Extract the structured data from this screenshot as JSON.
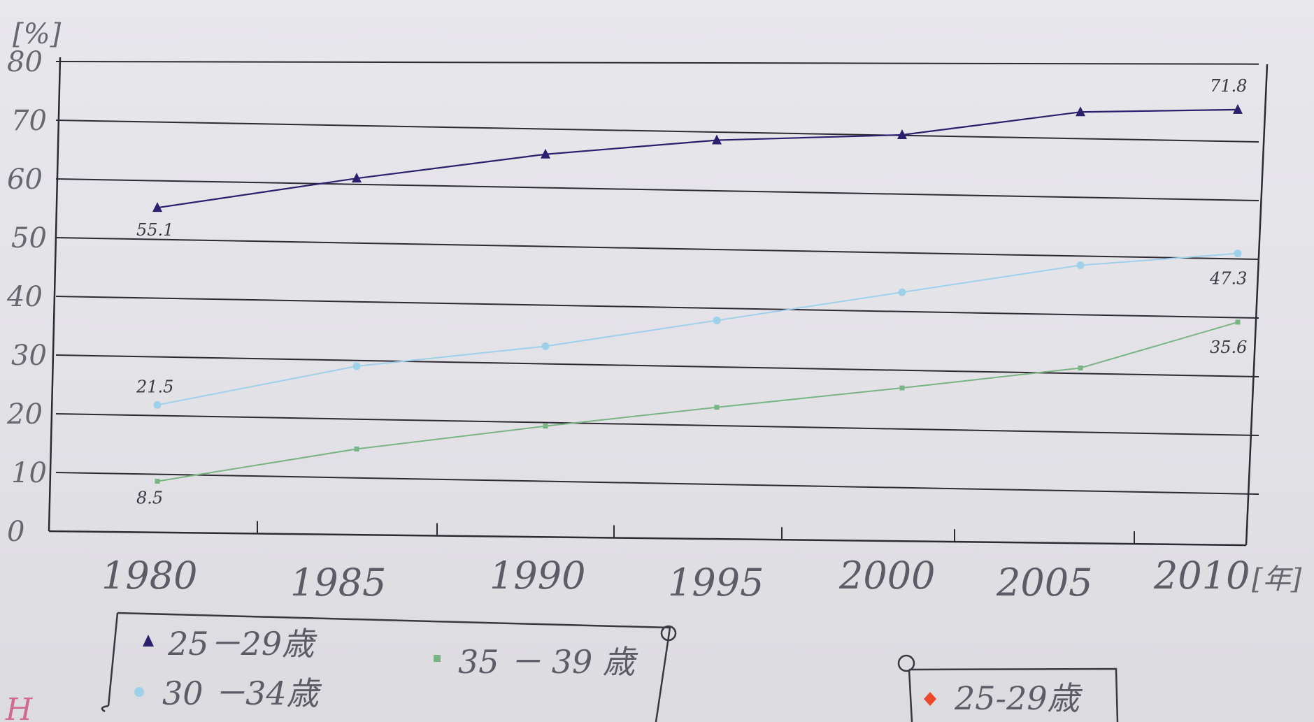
{
  "chart_data": {
    "type": "line",
    "x": [
      1980,
      1985,
      1990,
      1995,
      2000,
      2005,
      2010
    ],
    "x_tick_labels": [
      "1980",
      "1985",
      "1990",
      "1995",
      "2000",
      "2005",
      "2010"
    ],
    "y_tick_labels": [
      "0",
      "10",
      "20",
      "30",
      "40",
      "50",
      "60",
      "70",
      "80"
    ],
    "ylim": [
      0,
      80
    ],
    "y_unit": "[%]",
    "x_unit": "[年]",
    "grid": true,
    "series": [
      {
        "name": "25－29歳",
        "color": "#2b1f6e",
        "marker": "triangle",
        "values": [
          55.1,
          60.1,
          64.2,
          66.6,
          67.5,
          71.4,
          71.8
        ],
        "labels": [
          {
            "index": 0,
            "text": "55.1"
          },
          {
            "index": 6,
            "text": "71.8"
          }
        ]
      },
      {
        "name": "30 －34歳",
        "color": "#9fd0ea",
        "marker": "circle",
        "values": [
          21.5,
          28.1,
          31.5,
          35.9,
          40.7,
          45.3,
          47.3
        ],
        "labels": [
          {
            "index": 0,
            "text": "21.5"
          },
          {
            "index": 6,
            "text": "47.3"
          }
        ]
      },
      {
        "name": "35 － 39 歳",
        "color": "#79b484",
        "marker": "square",
        "values": [
          8.5,
          14.0,
          17.9,
          21.1,
          24.4,
          27.8,
          35.6
        ],
        "labels": [
          {
            "index": 0,
            "text": "8.5"
          },
          {
            "index": 6,
            "text": "35.6"
          }
        ]
      }
    ],
    "legend": {
      "placement": "bottom-left",
      "items": [
        "25－29歳",
        "30 －34歳",
        "35 － 39 歳"
      ]
    }
  },
  "extra_legend": {
    "label": "25-29歳",
    "color": "#e84a2a",
    "marker": "diamond"
  },
  "corner_mark": "H"
}
